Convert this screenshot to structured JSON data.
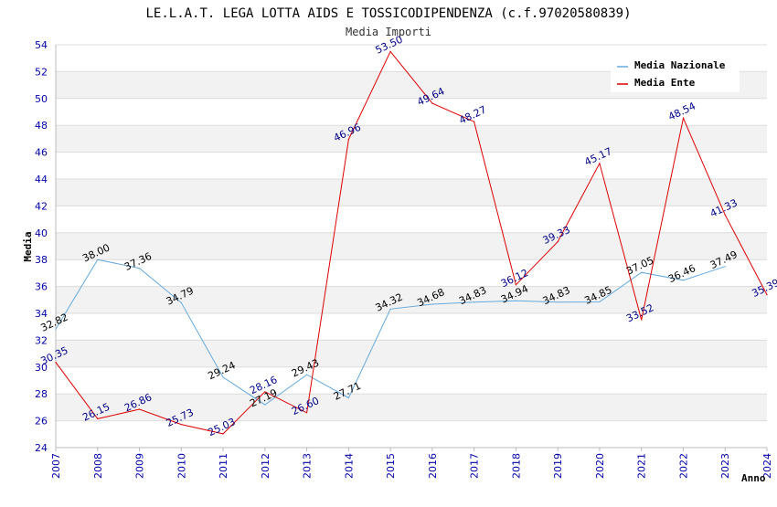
{
  "chart_data": {
    "type": "line",
    "title": "LE.L.A.T. LEGA LOTTA AIDS E TOSSICODIPENDENZA (c.f.97020580839)",
    "subtitle": "Media Importi",
    "xlabel": "Anno",
    "ylabel": "Media",
    "ylim": [
      24,
      54
    ],
    "yticks": [
      "24",
      "26",
      "28",
      "30",
      "32",
      "34",
      "36",
      "38",
      "40",
      "42",
      "44",
      "46",
      "48",
      "50",
      "52",
      "54"
    ],
    "x": [
      "2007",
      "2008",
      "2009",
      "2010",
      "2011",
      "2012",
      "2013",
      "2014",
      "2015",
      "2016",
      "2017",
      "2018",
      "2019",
      "2020",
      "2021",
      "2022",
      "2023",
      "2024"
    ],
    "grid": true,
    "legend_position": "top-right",
    "series": [
      {
        "name": "Media Nazionale",
        "color": "#66aadd",
        "label_color": "#000000",
        "values": [
          32.82,
          38.0,
          37.36,
          34.79,
          29.24,
          27.19,
          29.43,
          27.71,
          34.32,
          34.68,
          34.83,
          34.94,
          34.83,
          34.85,
          37.05,
          36.46,
          37.49,
          null
        ],
        "labels": [
          "32.82",
          "38.00",
          "37.36",
          "34.79",
          "29.24",
          "27.19",
          "29.43",
          "27.71",
          "34.32",
          "34.68",
          "34.83",
          "34.94",
          "34.83",
          "34.85",
          "37.05",
          "36.46",
          "37.49",
          ""
        ]
      },
      {
        "name": "Media Ente",
        "color": "#dd0000",
        "label_color": "#000088",
        "values": [
          30.35,
          26.15,
          26.86,
          25.73,
          25.03,
          28.16,
          26.6,
          46.96,
          53.5,
          49.64,
          48.27,
          36.12,
          39.33,
          45.17,
          33.52,
          48.54,
          41.33,
          35.39
        ],
        "labels": [
          "30.35",
          "26.15",
          "26.86",
          "25.73",
          "25.03",
          "28.16",
          "26.60",
          "46.96",
          "53.50",
          "49.64",
          "48.27",
          "36.12",
          "39.33",
          "45.17",
          "33.52",
          "48.54",
          "41.33",
          "35.39"
        ]
      }
    ]
  }
}
